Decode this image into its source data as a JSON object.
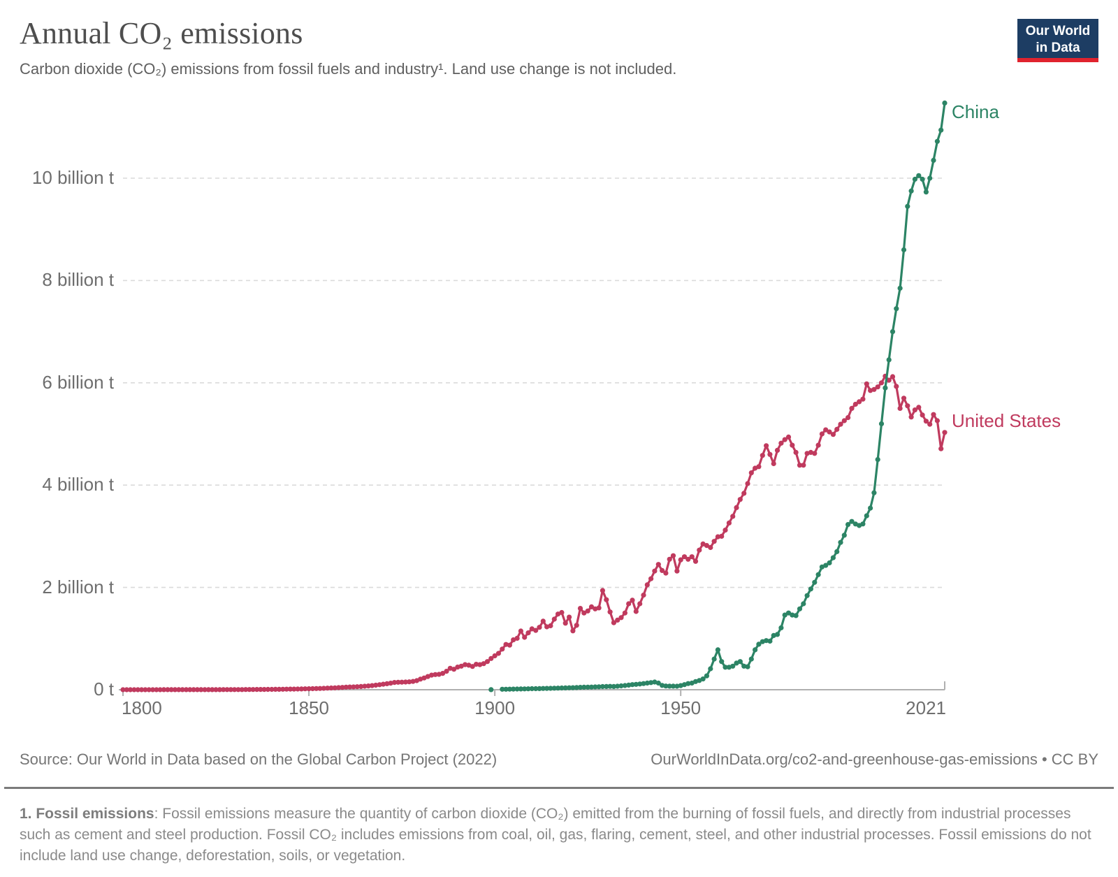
{
  "header": {
    "title": "Annual CO₂ emissions",
    "subtitle": "Carbon dioxide (CO₂) emissions from fossil fuels and industry¹. Land use change is not included."
  },
  "logo": {
    "line1": "Our World",
    "line2": "in Data",
    "bg_color": "#1d3d63",
    "bar_color": "#e0232e"
  },
  "footer": {
    "source": "Source: Our World in Data based on the Global Carbon Project (2022)",
    "url": "OurWorldInData.org/co2-and-greenhouse-gas-emissions • CC BY"
  },
  "footnote": {
    "lead": "1. Fossil emissions",
    "rest": ": Fossil emissions measure the quantity of carbon dioxide (CO₂) emitted from the burning of fossil fuels, and directly from industrial processes such as cement and steel production. Fossil CO₂ includes emissions from coal, oil, gas, flaring, cement, steel, and other industrial processes. Fossil emissions do not include land use change, deforestation, soils, or vegetation."
  },
  "chart_data": {
    "type": "line",
    "title": "Annual CO₂ emissions",
    "grid": "dashed-horizontal",
    "x_axis": {
      "domain": [
        1800,
        2021
      ],
      "ticks": [
        {
          "year": 1800,
          "label": "1800",
          "align": "start"
        },
        {
          "year": 1850,
          "label": "1850",
          "align": "center"
        },
        {
          "year": 1900,
          "label": "1900",
          "align": "center"
        },
        {
          "year": 1950,
          "label": "1950",
          "align": "center"
        },
        {
          "year": 2021,
          "label": "2021",
          "align": "end"
        }
      ]
    },
    "y_axis": {
      "unit": "billion t",
      "ticks": [
        {
          "value": 0,
          "label": "0 t"
        },
        {
          "value": 2,
          "label": "2 billion t"
        },
        {
          "value": 4,
          "label": "4 billion t"
        },
        {
          "value": 6,
          "label": "6 billion t"
        },
        {
          "value": 8,
          "label": "8 billion t"
        },
        {
          "value": 10,
          "label": "10 billion t"
        }
      ]
    },
    "series": [
      {
        "name": "United States",
        "color": "#c03a5e",
        "start_year": 1800,
        "values": [
          0.0003,
          0.0003,
          0.0003,
          0.0004,
          0.0004,
          0.0004,
          0.0005,
          0.0005,
          0.0005,
          0.0006,
          0.0006,
          0.0007,
          0.0007,
          0.0008,
          0.0008,
          0.0009,
          0.001,
          0.001,
          0.0011,
          0.0012,
          0.0013,
          0.0014,
          0.0015,
          0.0016,
          0.0017,
          0.0019,
          0.002,
          0.0022,
          0.0024,
          0.0026,
          0.0029,
          0.0031,
          0.0034,
          0.0038,
          0.0041,
          0.0045,
          0.005,
          0.0055,
          0.006,
          0.0066,
          0.0073,
          0.008,
          0.0088,
          0.0097,
          0.0107,
          0.0117,
          0.0129,
          0.0142,
          0.0156,
          0.0172,
          0.019,
          0.021,
          0.023,
          0.025,
          0.028,
          0.031,
          0.034,
          0.037,
          0.041,
          0.045,
          0.05,
          0.053,
          0.055,
          0.059,
          0.063,
          0.068,
          0.074,
          0.081,
          0.089,
          0.098,
          0.108,
          0.117,
          0.128,
          0.142,
          0.146,
          0.148,
          0.15,
          0.155,
          0.162,
          0.178,
          0.208,
          0.23,
          0.258,
          0.285,
          0.296,
          0.3,
          0.32,
          0.36,
          0.42,
          0.4,
          0.442,
          0.46,
          0.49,
          0.48,
          0.455,
          0.497,
          0.49,
          0.51,
          0.55,
          0.61,
          0.663,
          0.71,
          0.795,
          0.885,
          0.872,
          0.975,
          1.005,
          1.148,
          1.025,
          1.112,
          1.19,
          1.16,
          1.22,
          1.34,
          1.23,
          1.25,
          1.38,
          1.48,
          1.51,
          1.3,
          1.42,
          1.15,
          1.26,
          1.59,
          1.5,
          1.54,
          1.62,
          1.58,
          1.6,
          1.94,
          1.76,
          1.52,
          1.31,
          1.36,
          1.41,
          1.5,
          1.68,
          1.75,
          1.53,
          1.68,
          1.85,
          2.05,
          2.17,
          2.32,
          2.45,
          2.33,
          2.28,
          2.55,
          2.62,
          2.32,
          2.54,
          2.6,
          2.55,
          2.6,
          2.51,
          2.73,
          2.85,
          2.82,
          2.78,
          2.9,
          2.99,
          3.0,
          3.12,
          3.26,
          3.39,
          3.56,
          3.72,
          3.84,
          4.03,
          4.24,
          4.33,
          4.36,
          4.58,
          4.77,
          4.6,
          4.42,
          4.68,
          4.82,
          4.89,
          4.94,
          4.78,
          4.64,
          4.39,
          4.39,
          4.62,
          4.64,
          4.62,
          4.78,
          5.0,
          5.08,
          5.04,
          4.99,
          5.09,
          5.19,
          5.26,
          5.32,
          5.5,
          5.58,
          5.63,
          5.68,
          5.98,
          5.85,
          5.87,
          5.92,
          6.0,
          6.13,
          6.05,
          6.12,
          5.93,
          5.5,
          5.7,
          5.55,
          5.33,
          5.47,
          5.52,
          5.37,
          5.25,
          5.19,
          5.38,
          5.26,
          4.71,
          5.03
        ]
      },
      {
        "name": "China",
        "color": "#2c8465",
        "lone_points": [
          [
            1899,
            0.001
          ]
        ],
        "start_year": 1902,
        "values": [
          0.009,
          0.01,
          0.011,
          0.012,
          0.013,
          0.015,
          0.016,
          0.018,
          0.02,
          0.021,
          0.022,
          0.024,
          0.026,
          0.028,
          0.03,
          0.032,
          0.034,
          0.036,
          0.038,
          0.04,
          0.043,
          0.046,
          0.049,
          0.05,
          0.052,
          0.055,
          0.058,
          0.062,
          0.063,
          0.065,
          0.063,
          0.068,
          0.075,
          0.082,
          0.09,
          0.1,
          0.105,
          0.112,
          0.12,
          0.13,
          0.14,
          0.15,
          0.13,
          0.085,
          0.072,
          0.07,
          0.07,
          0.068,
          0.08,
          0.1,
          0.12,
          0.13,
          0.16,
          0.18,
          0.21,
          0.27,
          0.41,
          0.6,
          0.78,
          0.55,
          0.44,
          0.44,
          0.46,
          0.52,
          0.55,
          0.46,
          0.45,
          0.6,
          0.78,
          0.89,
          0.94,
          0.96,
          0.95,
          1.06,
          1.08,
          1.21,
          1.46,
          1.5,
          1.46,
          1.45,
          1.58,
          1.68,
          1.84,
          1.97,
          2.1,
          2.25,
          2.4,
          2.43,
          2.48,
          2.58,
          2.7,
          2.88,
          3.02,
          3.23,
          3.29,
          3.24,
          3.21,
          3.24,
          3.4,
          3.55,
          3.85,
          4.5,
          5.2,
          5.9,
          6.45,
          7.0,
          7.45,
          7.85,
          8.6,
          9.45,
          9.75,
          9.98,
          10.05,
          9.98,
          9.73,
          10.0,
          10.35,
          10.72,
          10.94,
          11.47
        ]
      }
    ],
    "colors": {
      "gridline": "#dadada",
      "axis": "#b0b0b0",
      "tick_text": "#6e6e6e"
    }
  }
}
